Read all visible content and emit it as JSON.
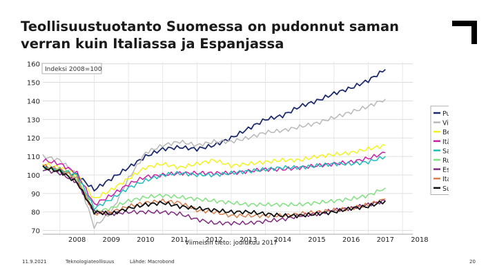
{
  "slide": {
    "title": "Teollisuustuotanto Suomessa on pudonnut saman verran kuin Italiassa ja Espanjassa",
    "footer_date": "11.9.2021",
    "footer_org": "Teknologiateollisuus",
    "footer_source": "Lähde: Macrobond",
    "page_number": "20"
  },
  "chart_data": {
    "type": "line",
    "title": "",
    "annotation": "Indeksi 2008=100",
    "xlabel": "Viimeisin tieto: joulukuu 2017",
    "ylabel": "",
    "x_ticks": [
      "2008",
      "2009",
      "2010",
      "2011",
      "2012",
      "2013",
      "2014",
      "2015",
      "2016",
      "2017",
      "2018"
    ],
    "y_ticks": [
      70,
      80,
      90,
      100,
      110,
      120,
      130,
      140,
      150,
      160
    ],
    "xlim": [
      2007.5,
      2018.3
    ],
    "ylim": [
      68,
      161
    ],
    "grid": true,
    "legend_position": "right",
    "x": [
      2007.5,
      2008.0,
      2008.5,
      2009.0,
      2009.5,
      2010.0,
      2010.5,
      2011.0,
      2011.5,
      2012.0,
      2012.5,
      2013.0,
      2013.5,
      2014.0,
      2014.5,
      2015.0,
      2015.5,
      2016.0,
      2016.5,
      2017.0,
      2017.5
    ],
    "series": [
      {
        "name": "Puola",
        "color": "#1c2a6e",
        "values": [
          105,
          102,
          100,
          92,
          98,
          104,
          110,
          114,
          115,
          114,
          116,
          120,
          125,
          130,
          132,
          137,
          140,
          144,
          147,
          151,
          157
        ]
      },
      {
        "name": "Viro",
        "color": "#b8b8b8",
        "values": [
          110,
          108,
          100,
          72,
          80,
          98,
          112,
          116,
          118,
          116,
          118,
          118,
          120,
          123,
          124,
          126,
          128,
          131,
          134,
          137,
          141
        ]
      },
      {
        "name": "Belgia",
        "color": "#f2f21f",
        "values": [
          106,
          104,
          100,
          87,
          92,
          98,
          104,
          106,
          104,
          106,
          108,
          105,
          106,
          107,
          108,
          108,
          110,
          111,
          112,
          114,
          116
        ]
      },
      {
        "name": "Itävalta",
        "color": "#cc1fa8",
        "values": [
          108,
          106,
          101,
          84,
          89,
          95,
          99,
          100,
          101,
          101,
          101,
          101,
          102,
          103,
          103,
          104,
          105,
          106,
          107,
          109,
          112
        ]
      },
      {
        "name": "Saksa",
        "color": "#1fbcbc",
        "values": [
          104,
          103,
          100,
          82,
          87,
          93,
          97,
          100,
          101,
          100,
          100,
          101,
          102,
          103,
          104,
          104,
          105,
          106,
          106,
          107,
          110
        ]
      },
      {
        "name": "Ruotsi",
        "color": "#80e080",
        "values": [
          104,
          102,
          98,
          80,
          82,
          86,
          88,
          89,
          88,
          87,
          86,
          85,
          84,
          84,
          84,
          84,
          85,
          86,
          87,
          89,
          93
        ]
      },
      {
        "name": "Espanja",
        "color": "#7f2a7f",
        "values": [
          103,
          101,
          96,
          80,
          79,
          80,
          80,
          80,
          79,
          76,
          74,
          74,
          74,
          75,
          76,
          78,
          79,
          81,
          82,
          84,
          86
        ]
      },
      {
        "name": "Italia",
        "color": "#d9804d",
        "values": [
          105,
          103,
          98,
          79,
          80,
          83,
          85,
          86,
          85,
          81,
          80,
          78,
          78,
          78,
          78,
          79,
          80,
          81,
          82,
          84,
          87
        ]
      },
      {
        "name": "Suomi",
        "color": "#111111",
        "values": [
          104,
          102,
          96,
          80,
          79,
          82,
          84,
          85,
          83,
          82,
          81,
          80,
          80,
          79,
          78,
          78,
          79,
          80,
          82,
          83,
          86
        ]
      }
    ]
  }
}
